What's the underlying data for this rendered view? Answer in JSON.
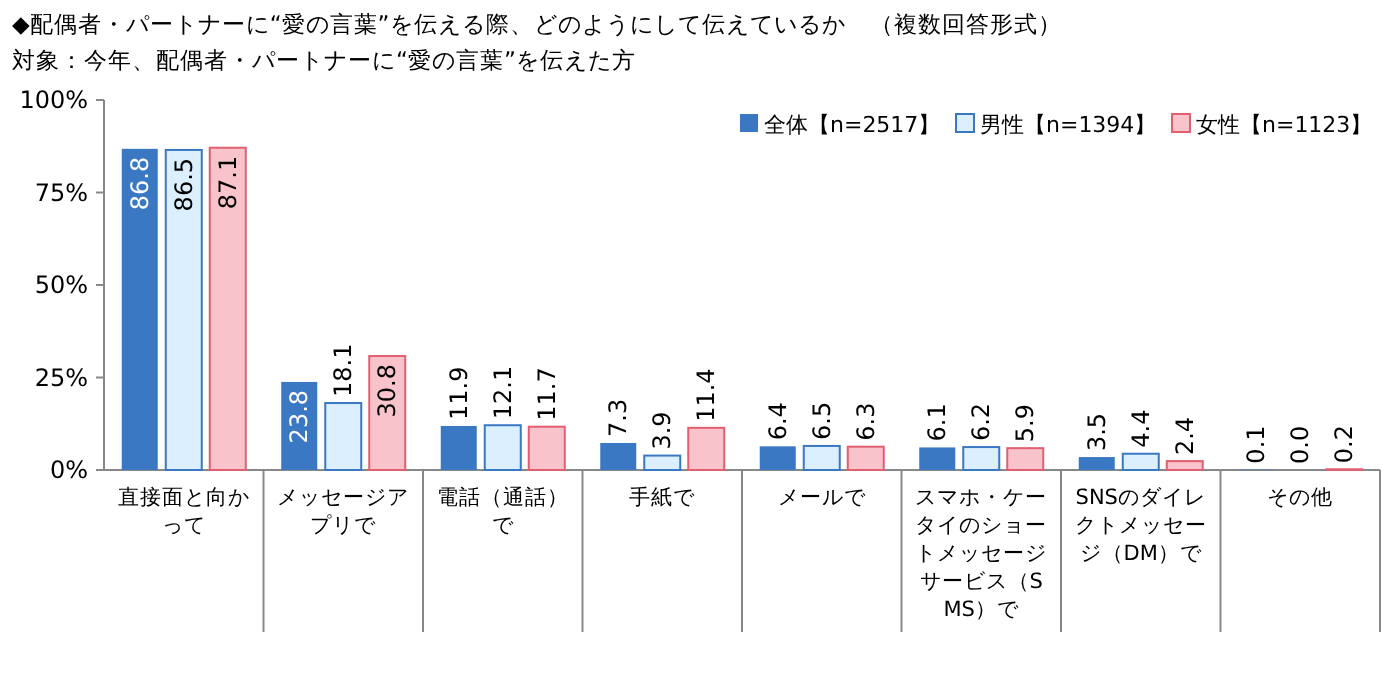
{
  "chart_data": {
    "type": "bar",
    "title": "◆配偶者・パートナーに“愛の言葉”を伝える際、どのようにして伝えているか　（複数回答形式）",
    "subtitle": "対象：今年、配偶者・パートナーに“愛の言葉”を伝えた方",
    "categories": [
      "直接面と向かって",
      "メッセージアプリで",
      "電話（通話）で",
      "手紙で",
      "メールで",
      "スマホ・ケータイのショートメッセージサービス（SMS）で",
      "SNSのダイレクトメッセージ（DM）で",
      "その他"
    ],
    "series": [
      {
        "name": "全体【n=2517】",
        "color": "#3a78c4",
        "values": [
          86.8,
          23.8,
          11.9,
          7.3,
          6.4,
          6.1,
          3.5,
          0.1
        ],
        "value_labels": [
          "86.8",
          "23.8",
          "11.9",
          "7.3",
          "6.4",
          "6.1",
          "3.5",
          "0.1"
        ]
      },
      {
        "name": "男性【n=1394】",
        "color": "#dcefff",
        "values": [
          86.5,
          18.1,
          12.1,
          3.9,
          6.5,
          6.2,
          4.4,
          0
        ],
        "value_labels": [
          "86.5",
          "18.1",
          "12.1",
          "3.9",
          "6.5",
          "6.2",
          "4.4",
          "0.0"
        ]
      },
      {
        "name": "女性【n=1123】",
        "color": "#f9c3cb",
        "values": [
          87.1,
          30.8,
          11.7,
          11.4,
          6.3,
          5.9,
          2.4,
          0.2
        ],
        "value_labels": [
          "87.1",
          "30.8",
          "11.7",
          "11.4",
          "6.3",
          "5.9",
          "2.4",
          "0.2"
        ]
      }
    ],
    "ylim": [
      0,
      100
    ],
    "yticks": [
      {
        "value": 0,
        "label": "0%"
      },
      {
        "value": 25,
        "label": "25%"
      },
      {
        "value": 50,
        "label": "50%"
      },
      {
        "value": 75,
        "label": "75%"
      },
      {
        "value": 100,
        "label": "100%"
      }
    ],
    "legend": "top right",
    "grid": false
  }
}
